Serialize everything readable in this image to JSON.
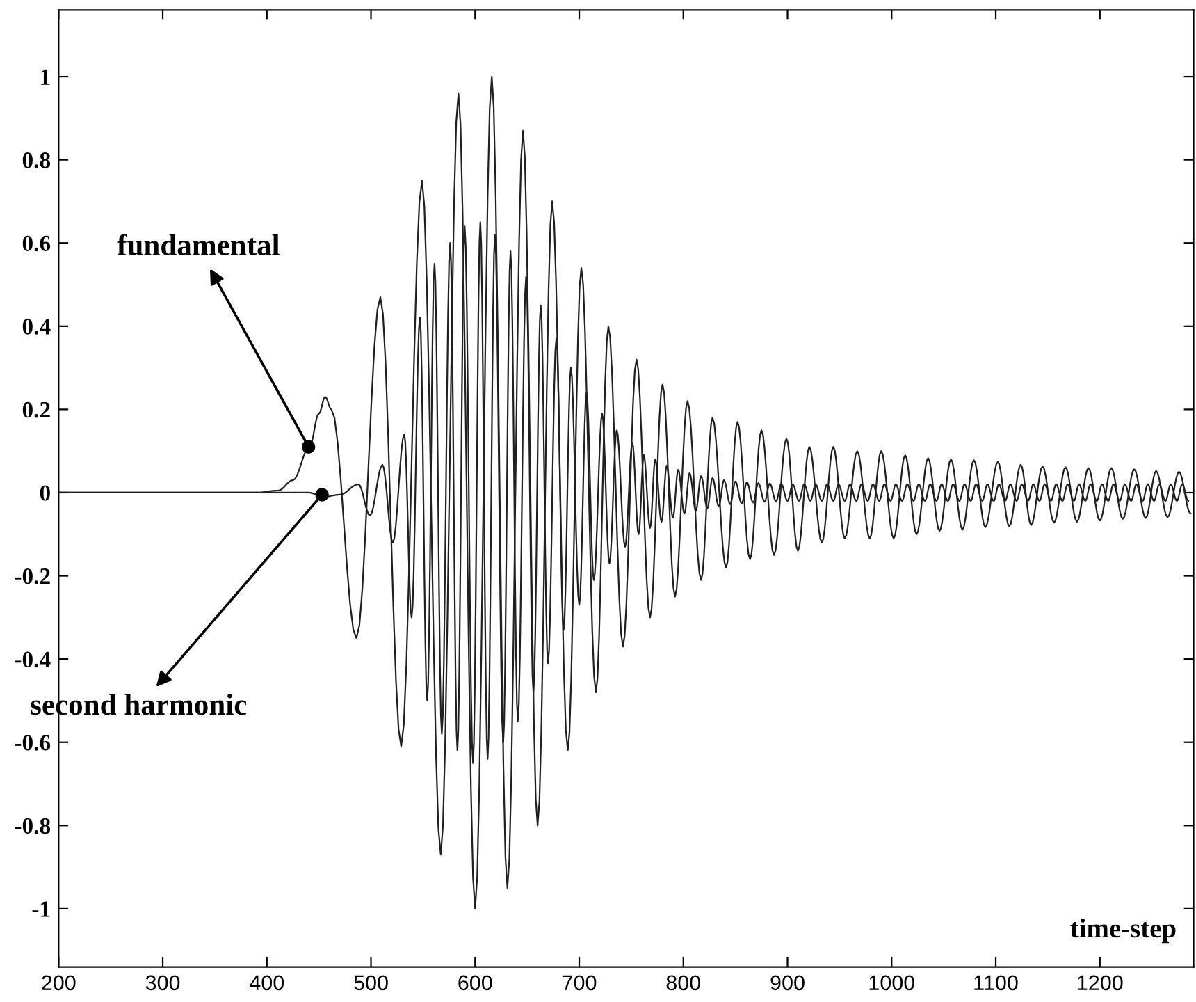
{
  "chart_data": {
    "type": "line",
    "xlabel": "time-step",
    "xlim": [
      200,
      1290
    ],
    "ylim": [
      -1.14,
      1.16
    ],
    "xticks": [
      200,
      300,
      400,
      500,
      600,
      700,
      800,
      900,
      1000,
      1100,
      1200
    ],
    "yticks": [
      -1,
      -0.8,
      -0.6,
      -0.4,
      -0.2,
      0,
      0.2,
      0.4,
      0.6,
      0.8,
      1
    ],
    "grid": false,
    "line_style": "solid",
    "marker": "none",
    "annotations": [
      {
        "text": "fundamental",
        "x": 440,
        "y": 0.11
      },
      {
        "text": "second harmonic",
        "x": 453,
        "y": -0.005
      }
    ],
    "series": [
      {
        "color": "#202020",
        "x": [
          200,
          390,
          411,
          425,
          441,
          450,
          456,
          462,
          486,
          509,
          529,
          549,
          567,
          584,
          600,
          616,
          631,
          646,
          660,
          674,
          689,
          702,
          716,
          728,
          742,
          755,
          768,
          780,
          792,
          804,
          817,
          828,
          841,
          852,
          864,
          875,
          887,
          899,
          910,
          921,
          933,
          944,
          955,
          967,
          979,
          990,
          1002,
          1013,
          1024,
          1035,
          1046,
          1057,
          1068,
          1079,
          1090,
          1102,
          1113,
          1124,
          1134,
          1145,
          1156,
          1167,
          1178,
          1189,
          1200,
          1211,
          1222,
          1233,
          1244,
          1254,
          1265,
          1276,
          1287
        ],
        "values": [
          0,
          0,
          0.005,
          0.03,
          0.11,
          0.19,
          0.23,
          0.2,
          -0.35,
          0.47,
          -0.61,
          0.75,
          -0.87,
          0.96,
          -1.0,
          1.0,
          -0.95,
          0.87,
          -0.8,
          0.7,
          -0.62,
          0.54,
          -0.48,
          0.4,
          -0.37,
          0.32,
          -0.3,
          0.26,
          -0.25,
          0.22,
          -0.21,
          0.18,
          -0.18,
          0.17,
          -0.16,
          0.15,
          -0.15,
          0.13,
          -0.14,
          0.11,
          -0.12,
          0.11,
          -0.11,
          0.1,
          -0.11,
          0.1,
          -0.11,
          0.09,
          -0.1,
          0.083,
          -0.092,
          0.08,
          -0.089,
          0.078,
          -0.083,
          0.074,
          -0.081,
          0.067,
          -0.078,
          0.063,
          -0.072,
          0.061,
          -0.07,
          0.059,
          -0.067,
          0.059,
          -0.063,
          0.056,
          -0.061,
          0.052,
          -0.059,
          0.05,
          -0.05
        ]
      },
      {
        "color": "#202020",
        "x": [
          200,
          440,
          455,
          470,
          488,
          499,
          511,
          521,
          532,
          539,
          547,
          554,
          561,
          568,
          576,
          583,
          590,
          598,
          605,
          612,
          619,
          627,
          634,
          641,
          649,
          656,
          663,
          670,
          678,
          685,
          692,
          700,
          707,
          714,
          722,
          729,
          736,
          744,
          751,
          757,
          762,
          768,
          773,
          779,
          784,
          790,
          795,
          801,
          806,
          812,
          817,
          823,
          828,
          834,
          839,
          845,
          850,
          856,
          861,
          867,
          872,
          878,
          883,
          889,
          894,
          900,
          905,
          911,
          916,
          922,
          927,
          933,
          938,
          944,
          949,
          955,
          960,
          966,
          971,
          977,
          982,
          988,
          993,
          999,
          1004,
          1010,
          1015,
          1021,
          1026,
          1032,
          1037,
          1043,
          1048,
          1054,
          1059,
          1065,
          1070,
          1076,
          1081,
          1087,
          1092,
          1098,
          1103,
          1109,
          1114,
          1120,
          1125,
          1131,
          1136,
          1142,
          1147,
          1153,
          1158,
          1164,
          1169,
          1175,
          1180,
          1186,
          1191,
          1197,
          1202,
          1208,
          1213,
          1219,
          1224,
          1230,
          1235,
          1241,
          1246,
          1252,
          1257,
          1263,
          1268,
          1274,
          1279,
          1285
        ],
        "values": [
          0,
          0,
          -0.01,
          -0.005,
          0.02,
          -0.055,
          0.067,
          -0.12,
          0.14,
          -0.3,
          0.42,
          -0.5,
          0.55,
          -0.58,
          0.6,
          -0.62,
          0.64,
          -0.65,
          0.65,
          -0.64,
          0.62,
          -0.6,
          0.58,
          -0.55,
          0.52,
          -0.48,
          0.45,
          -0.41,
          0.37,
          -0.33,
          0.3,
          -0.27,
          0.24,
          -0.21,
          0.19,
          -0.17,
          0.15,
          -0.13,
          0.12,
          -0.1,
          0.09,
          -0.085,
          0.08,
          -0.07,
          0.065,
          -0.06,
          0.055,
          -0.05,
          0.047,
          -0.044,
          0.04,
          -0.038,
          0.035,
          -0.033,
          0.03,
          -0.028,
          0.027,
          -0.026,
          0.025,
          -0.024,
          0.023,
          -0.022,
          0.022,
          -0.021,
          0.021,
          -0.02,
          0.02,
          -0.02,
          0.02,
          -0.02,
          0.02,
          -0.02,
          0.02,
          -0.02,
          0.02,
          -0.02,
          0.02,
          -0.02,
          0.02,
          -0.02,
          0.02,
          -0.02,
          0.02,
          -0.02,
          0.02,
          -0.02,
          0.02,
          -0.02,
          0.02,
          -0.02,
          0.02,
          -0.02,
          0.02,
          -0.02,
          0.02,
          -0.02,
          0.02,
          -0.02,
          0.02,
          -0.02,
          0.02,
          -0.02,
          0.02,
          -0.02,
          0.02,
          -0.02,
          0.02,
          -0.02,
          0.02,
          -0.02,
          0.02,
          -0.02,
          0.02,
          -0.02,
          0.02,
          -0.02,
          0.02,
          -0.02,
          0.02,
          -0.02,
          0.02,
          -0.02,
          0.02,
          -0.02,
          0.02,
          -0.02,
          0.02,
          -0.02,
          0.02,
          -0.02,
          0.02,
          -0.02,
          0.02,
          -0.02,
          0.02,
          -0.02
        ]
      }
    ]
  }
}
